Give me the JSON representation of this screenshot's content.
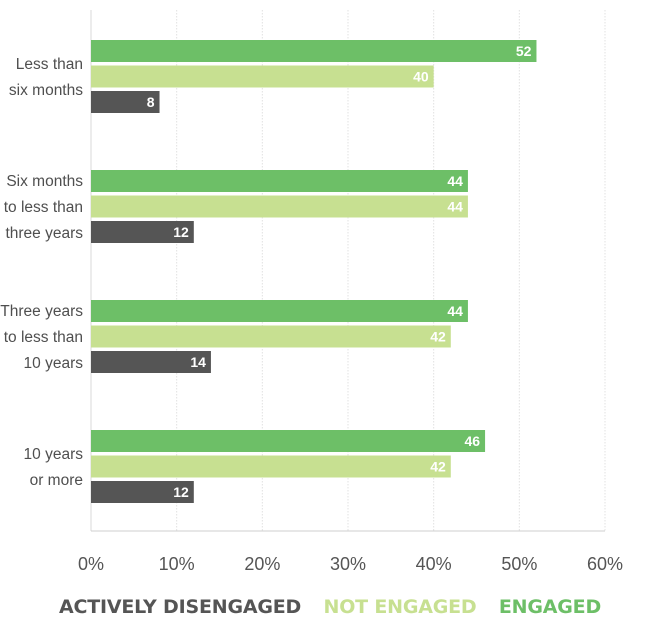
{
  "chart_data": {
    "type": "bar",
    "orientation": "horizontal",
    "categories": [
      [
        "Less than",
        "six months"
      ],
      [
        "Six months",
        "to less than",
        "three years"
      ],
      [
        "Three years",
        "to less than",
        "10 years"
      ],
      [
        "10 years",
        "or more"
      ]
    ],
    "series": [
      {
        "name": "ENGAGED",
        "color": "#6dbf67",
        "values": [
          52,
          44,
          44,
          46
        ]
      },
      {
        "name": "NOT ENGAGED",
        "color": "#c7e091",
        "values": [
          40,
          44,
          42,
          42
        ]
      },
      {
        "name": "ACTIVELY DISENGAGED",
        "color": "#555555",
        "values": [
          8,
          12,
          14,
          12
        ]
      }
    ],
    "xlim": [
      0,
      60
    ],
    "xticks": [
      0,
      10,
      20,
      30,
      40,
      50,
      60
    ],
    "xtick_labels": [
      "0%",
      "10%",
      "20%",
      "30%",
      "40%",
      "50%",
      "60%"
    ],
    "grid": true,
    "legend_position": "bottom",
    "legend_order": [
      "ACTIVELY DISENGAGED",
      "NOT ENGAGED",
      "ENGAGED"
    ],
    "title": "",
    "xlabel": "",
    "ylabel": ""
  }
}
